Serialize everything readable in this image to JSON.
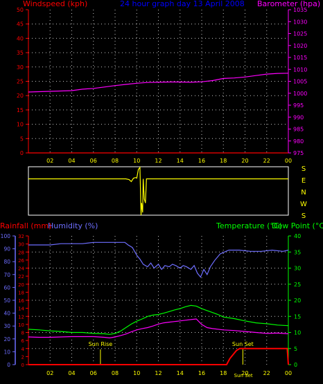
{
  "colors": {
    "windspeed": "#ff0000",
    "title": "#0000ff",
    "barometer": "#ff00ff",
    "wind_dir_trace": "#ffff00",
    "rainfall": "#ff0000",
    "humidity": "#6e6eff",
    "temperature": "#00ff00",
    "dewpoint": "#ff00ff",
    "axis": "#ffffff",
    "sun_marker": "#ffff00",
    "grid": "#c8c8c8"
  },
  "chart_data": [
    {
      "id": "pressure-wind",
      "type": "line",
      "title": "24 hour graph day 13 April 2008",
      "left_label": "Windspeed (kph)",
      "right_label": "Barometer (hpa)",
      "x_ticks": [
        "02",
        "04",
        "06",
        "08",
        "10",
        "12",
        "14",
        "16",
        "18",
        "20",
        "22",
        "00"
      ],
      "y_left_ticks": [
        "0",
        "5",
        "10",
        "15",
        "20",
        "25",
        "30",
        "35",
        "40",
        "45",
        "50"
      ],
      "y_left_lim": [
        0,
        50
      ],
      "y_right_ticks": [
        "975",
        "980",
        "985",
        "990",
        "995",
        "1000",
        "1005",
        "1010",
        "1015",
        "1020",
        "1025",
        "1030",
        "1035"
      ],
      "y_right_lim": [
        975,
        1035
      ],
      "grid": true,
      "series": [
        {
          "name": "Barometer",
          "axis": "right",
          "x": [
            0,
            2,
            4,
            5,
            6,
            7,
            8,
            9,
            10,
            11,
            12,
            13,
            14,
            15,
            16,
            17,
            18,
            19,
            20,
            21,
            22,
            23,
            24
          ],
          "y": [
            1000.5,
            1000.8,
            1001.1,
            1001.7,
            1002.0,
            1002.6,
            1003.2,
            1003.7,
            1004.2,
            1004.5,
            1004.6,
            1004.7,
            1004.7,
            1004.6,
            1004.8,
            1005.3,
            1006.2,
            1006.4,
            1006.8,
            1007.4,
            1008.0,
            1008.3,
            1008.4
          ]
        },
        {
          "name": "Windspeed",
          "axis": "left",
          "x": [
            0,
            24
          ],
          "y": [
            0,
            0
          ]
        }
      ]
    },
    {
      "id": "wind-direction",
      "type": "line",
      "compass_labels": [
        "S",
        "E",
        "N",
        "W",
        "S"
      ],
      "series": [
        {
          "name": "Wind direction",
          "x": [
            0,
            9.0,
            9.3,
            9.5,
            9.7,
            9.9,
            10.0,
            10.15,
            10.3,
            10.4,
            10.45,
            10.55,
            10.6,
            10.7,
            10.8,
            10.9,
            11.0,
            24
          ],
          "y": [
            90,
            90,
            85,
            70,
            95,
            100,
            95,
            160,
            175,
            180,
            -90,
            200,
            90,
            300,
            -90,
            90,
            90,
            90
          ]
        }
      ]
    },
    {
      "id": "temp-hum-rain",
      "type": "line",
      "left_outer_label": "Rainfall (mm)",
      "left_inner_label": "Humidity (%)",
      "right_label": "Temperature (°C)",
      "right_label_2": "Dew Point (°C)",
      "x_ticks": [
        "02",
        "04",
        "06",
        "08",
        "10",
        "12",
        "14",
        "16",
        "18",
        "20",
        "22",
        "00"
      ],
      "humidity_ticks": [
        "0",
        "10",
        "20",
        "30",
        "40",
        "50",
        "60",
        "70",
        "80",
        "90",
        "100"
      ],
      "humidity_lim": [
        0,
        100
      ],
      "rain_ticks": [
        "0",
        "2",
        "4",
        "6",
        "8",
        "10",
        "12",
        "14",
        "16",
        "18",
        "20",
        "22",
        "24",
        "26",
        "28",
        "30",
        "32"
      ],
      "rain_lim": [
        0,
        32
      ],
      "temp_ticks": [
        "0",
        "5",
        "10",
        "15",
        "20",
        "25",
        "30",
        "35",
        "40"
      ],
      "temp_lim": [
        0,
        40
      ],
      "grid": true,
      "annotations": [
        {
          "label": "Sun Rise",
          "x": 6.65
        },
        {
          "label": "Sun Set",
          "x": 19.8
        },
        {
          "label": "Sun Set",
          "x": 19.85
        }
      ],
      "series": [
        {
          "name": "Humidity",
          "axis": "humidity",
          "x": [
            0,
            1,
            2,
            3,
            4,
            5,
            6,
            7,
            8,
            8.9,
            9.2,
            9.6,
            10,
            10.3,
            10.6,
            11,
            11.3,
            11.6,
            12,
            12.3,
            12.6,
            13,
            13.3,
            13.6,
            14,
            14.3,
            14.6,
            15,
            15.3,
            15.6,
            15.9,
            16.2,
            16.5,
            16.8,
            17.2,
            17.7,
            18.5,
            19.5,
            20.5,
            21.5,
            22.5,
            23.5,
            24
          ],
          "y": [
            93,
            93,
            93,
            94,
            94,
            94,
            95,
            95,
            95,
            95,
            93,
            91,
            85,
            82,
            78,
            76,
            79,
            75,
            78,
            74,
            77,
            76,
            78,
            77,
            75,
            77,
            76,
            74,
            77,
            71,
            68,
            74,
            70,
            76,
            81,
            86,
            89,
            89,
            88,
            88,
            89,
            88,
            89
          ]
        },
        {
          "name": "Temperature",
          "axis": "temp",
          "x": [
            0,
            1,
            2,
            3,
            4,
            5,
            6,
            7,
            7.5,
            8,
            8.5,
            9,
            9.5,
            10,
            10.5,
            11,
            11.5,
            12,
            12.5,
            13,
            13.5,
            14,
            14.5,
            15,
            15.5,
            16,
            16.5,
            17,
            17.5,
            18,
            19,
            20,
            21,
            22,
            23,
            24
          ],
          "y": [
            11,
            10.8,
            10.5,
            10.3,
            10,
            10,
            9.7,
            9.6,
            9.4,
            9.7,
            10.4,
            11.5,
            12.6,
            13.5,
            14.2,
            15.0,
            15.4,
            15.6,
            16.0,
            16.5,
            17.0,
            17.4,
            18.0,
            18.4,
            18.2,
            17.4,
            16.8,
            16.2,
            15.6,
            14.8,
            14.3,
            13.6,
            13.0,
            12.7,
            12.3,
            12.1
          ]
        },
        {
          "name": "Dew Point",
          "axis": "temp",
          "x": [
            0,
            1,
            2,
            3,
            4,
            5,
            6,
            7,
            7.5,
            8,
            8.5,
            9,
            9.5,
            10,
            10.5,
            11,
            11.5,
            12,
            12.5,
            13,
            13.5,
            14,
            14.5,
            15,
            15.5,
            16,
            16.5,
            17,
            18,
            19,
            20,
            21,
            22,
            23,
            24
          ],
          "y": [
            8.6,
            8.5,
            8.5,
            8.6,
            8.7,
            8.7,
            8.7,
            8.5,
            8.3,
            8.6,
            9.0,
            9.5,
            10.2,
            10.8,
            11.2,
            11.5,
            12.0,
            12.6,
            13.0,
            13.2,
            13.4,
            13.6,
            13.8,
            14.0,
            14.2,
            12.5,
            11.5,
            11.2,
            10.8,
            10.6,
            10.3,
            10.0,
            9.7,
            9.8,
            9.6
          ]
        },
        {
          "name": "Rainfall",
          "axis": "rain",
          "x": [
            0,
            18.3,
            18.6,
            19.2,
            19.5,
            20,
            23.9,
            24
          ],
          "y": [
            0,
            0,
            1.5,
            3.5,
            4.0,
            4.0,
            4.0,
            0
          ]
        }
      ]
    }
  ]
}
